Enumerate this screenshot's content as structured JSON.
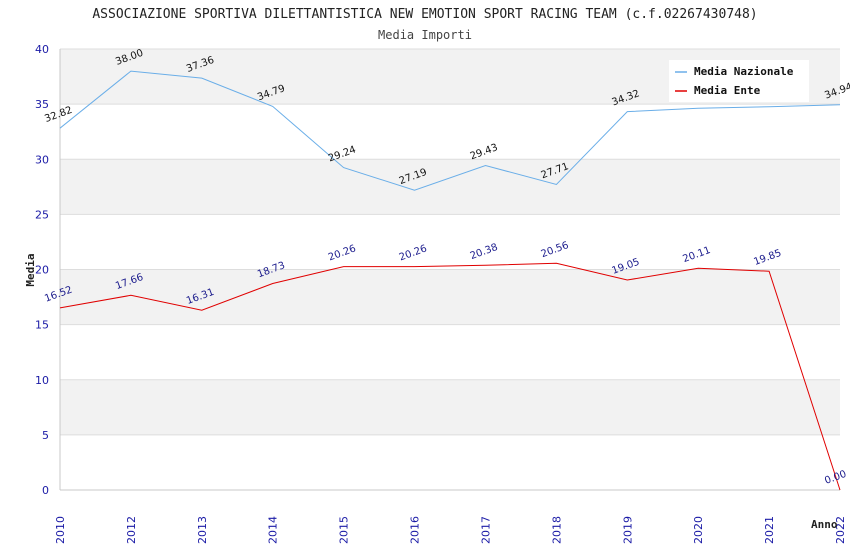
{
  "chart_data": {
    "type": "line",
    "title": "ASSOCIAZIONE SPORTIVA DILETTANTISTICA NEW EMOTION SPORT RACING TEAM (c.f.02267430748)",
    "subtitle": "Media Importi",
    "xlabel": "Anno",
    "ylabel": "Media",
    "ylim": [
      0,
      40
    ],
    "yticks": [
      0,
      5,
      10,
      15,
      20,
      25,
      30,
      35,
      40
    ],
    "categories": [
      "2010",
      "2012",
      "2013",
      "2014",
      "2015",
      "2016",
      "2017",
      "2018",
      "2019",
      "2020",
      "2021",
      "2022"
    ],
    "series": [
      {
        "name": "Media Nazionale",
        "color": "#6aaee8",
        "values": [
          32.82,
          38.0,
          37.36,
          34.79,
          29.24,
          27.19,
          29.43,
          27.71,
          34.32,
          34.62,
          34.77,
          34.94
        ],
        "labels": [
          "32.82",
          "38.00",
          "37.36",
          "34.79",
          "29.24",
          "27.19",
          "29.43",
          "27.71",
          "34.32",
          "",
          "",
          "34.94"
        ]
      },
      {
        "name": "Media Ente",
        "color": "#e00000",
        "values": [
          16.52,
          17.66,
          16.31,
          18.73,
          20.26,
          20.26,
          20.38,
          20.56,
          19.05,
          20.11,
          19.85,
          0.0
        ],
        "labels": [
          "16.52",
          "17.66",
          "16.31",
          "18.73",
          "20.26",
          "20.26",
          "20.38",
          "20.56",
          "19.05",
          "20.11",
          "19.85",
          "0.00"
        ]
      }
    ],
    "grid": true,
    "legend": "top-right"
  }
}
